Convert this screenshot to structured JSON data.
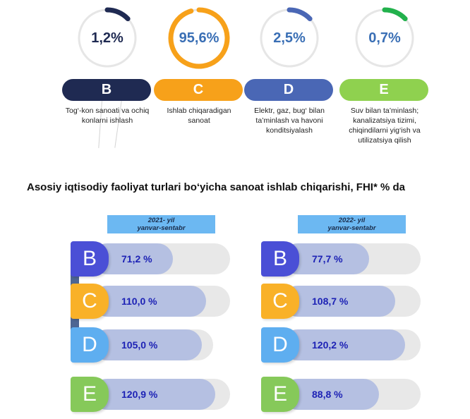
{
  "top_indicators": [
    {
      "letter": "B",
      "value": "1,2%",
      "percent": 1.2,
      "ring_color": "#1f2a52",
      "pill_color": "#1f2a52",
      "value_color": "#1f2a52",
      "description": "Tog‘-kon sanoati va ochiq konlarni ishlash"
    },
    {
      "letter": "C",
      "value": "95,6%",
      "percent": 95.6,
      "ring_color": "#f7a11a",
      "pill_color": "#f7a11a",
      "value_color": "#3a6fb5",
      "description": "Ishlab chiqaradigan sanoat"
    },
    {
      "letter": "D",
      "value": "2,5%",
      "percent": 2.5,
      "ring_color": "#4a67b5",
      "pill_color": "#4a67b5",
      "value_color": "#3a6fb5",
      "description": "Elektr, gaz, bug‘ bilan ta’minlash va havoni konditsiyalash"
    },
    {
      "letter": "E",
      "value": "0,7%",
      "percent": 0.7,
      "ring_color": "#22b14c",
      "pill_color": "#8fd14f",
      "value_color": "#3a6fb5",
      "description": "Suv bilan ta’minlash; kanalizatsiya tizimi, chiqindilarni yig‘ish va utilizatsiya qilish"
    }
  ],
  "section_title": "Asosiy iqtisodiy faoliyat turlari bo‘yicha sanoat ishlab chiqarishi, FHI* % da",
  "chart_data": [
    {
      "type": "bar",
      "title": "2021- yil yanvar-sentabr",
      "categories": [
        "B",
        "C",
        "D",
        "E"
      ],
      "values": [
        71.2,
        110.0,
        105.0,
        120.9
      ],
      "labels": [
        "71,2 %",
        "110,0 %",
        "105,0 %",
        "120,9 %"
      ]
    },
    {
      "type": "bar",
      "title": "2022- yil yanvar-sentabr",
      "categories": [
        "B",
        "C",
        "D",
        "E"
      ],
      "values": [
        77.7,
        108.7,
        120.2,
        88.8
      ],
      "labels": [
        "77,7 %",
        "108,7 %",
        "120,2 %",
        "88,8 %"
      ]
    }
  ],
  "year_headers": [
    {
      "line1": "2021- yil",
      "line2": "yanvar-sentabr"
    },
    {
      "line1": "2022- yil",
      "line2": "yanvar-sentabr"
    }
  ],
  "badge_colors": {
    "B": "#4a4fd6",
    "C": "#f9b128",
    "D": "#5eaef0",
    "E": "#86c95a"
  }
}
